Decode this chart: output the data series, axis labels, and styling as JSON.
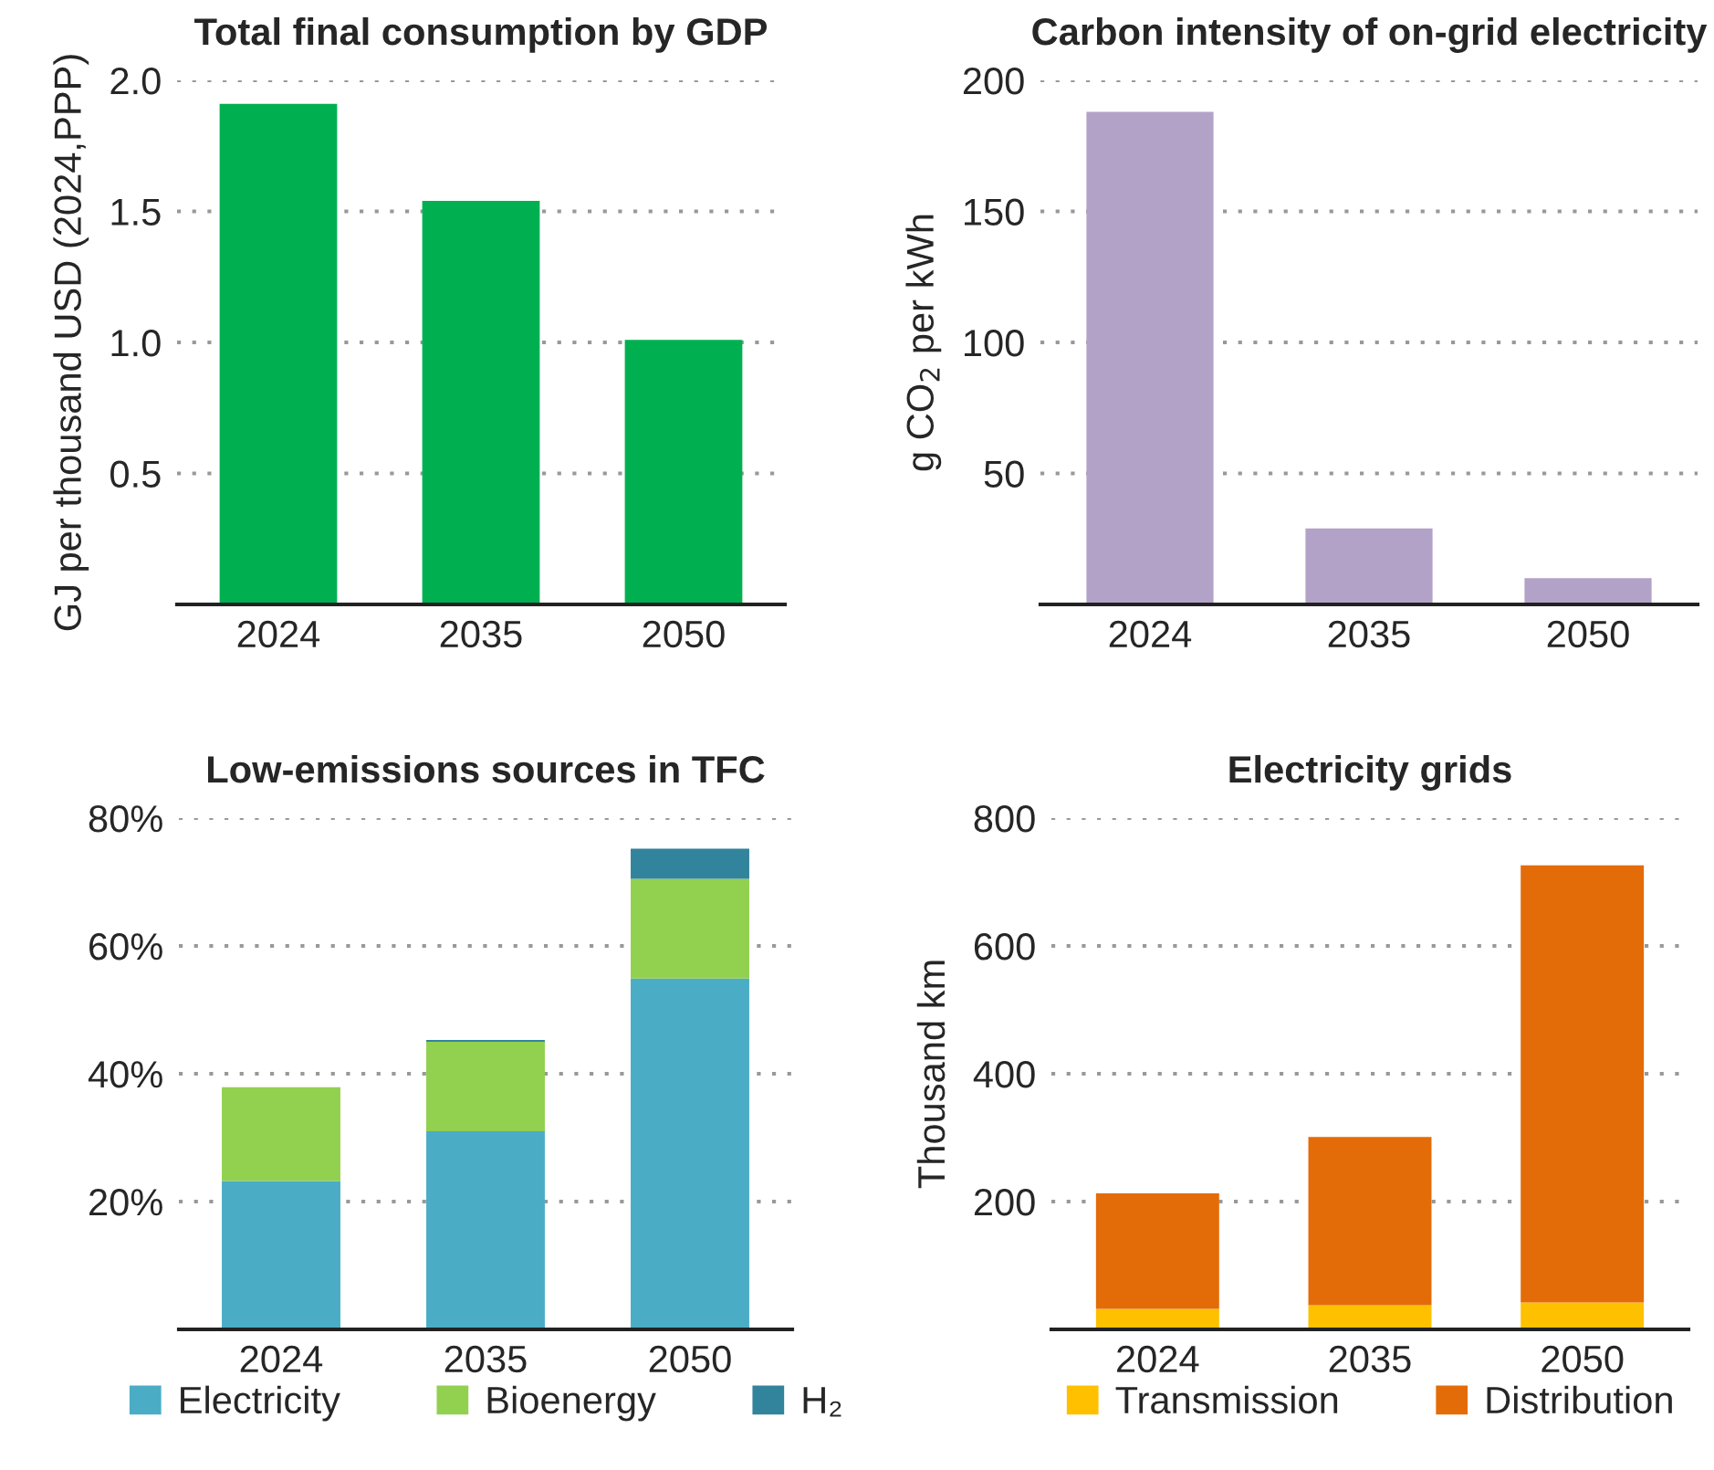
{
  "chart_data": [
    {
      "type": "bar",
      "title": "Total final consumption by GDP",
      "ylabel": "GJ per thousand USD (2024,PPP)",
      "categories": [
        "2024",
        "2035",
        "2050"
      ],
      "series": [
        {
          "color": "#00b050",
          "values": [
            1.91,
            1.54,
            1.01
          ]
        }
      ],
      "ylim": [
        0,
        2.0
      ],
      "yticks": [
        {
          "value": 0.5,
          "label": "0.5"
        },
        {
          "value": 1.0,
          "label": "1.0"
        },
        {
          "value": 1.5,
          "label": "1.5"
        },
        {
          "value": 2.0,
          "label": "2.0"
        }
      ],
      "grid": "y",
      "legend": false
    },
    {
      "type": "bar",
      "title": "Carbon intensity of on-grid electricity",
      "ylabel": "g CO$_{2}$ per kWh",
      "categories": [
        "2024",
        "2035",
        "2050"
      ],
      "series": [
        {
          "color": "#b3a2c7",
          "values": [
            188,
            29,
            10
          ]
        }
      ],
      "ylim": [
        0,
        200
      ],
      "yticks": [
        50,
        100,
        150,
        200
      ],
      "grid": "y",
      "legend": false
    },
    {
      "type": "bar",
      "title": "Low-emissions sources in TFC",
      "categories": [
        "2024",
        "2035",
        "2050"
      ],
      "stacked": true,
      "series": [
        {
          "name": "Electricity",
          "color": "#4bacc6",
          "values": [
            23.2,
            31.0,
            54.9
          ]
        },
        {
          "name": "Bioenergy",
          "color": "#92d050",
          "values": [
            14.7,
            14.0,
            15.6
          ]
        },
        {
          "name": "H₂",
          "color": "#31849b",
          "values": [
            null,
            0.3,
            4.7
          ]
        }
      ],
      "ylim": [
        0,
        80
      ],
      "yticks": [
        {
          "value": 20,
          "label": "20%"
        },
        {
          "value": 40,
          "label": "40%"
        },
        {
          "value": 60,
          "label": "60%"
        },
        {
          "value": 80,
          "label": "80%"
        }
      ],
      "grid": "y",
      "legend": "bottom"
    },
    {
      "type": "bar",
      "title": "Electricity grids",
      "ylabel": "Thousand km",
      "categories": [
        "2024",
        "2035",
        "2050"
      ],
      "stacked": true,
      "series": [
        {
          "name": "Transmission",
          "color": "#ffc000",
          "values": [
            32,
            38,
            42
          ]
        },
        {
          "name": "Distribution",
          "color": "#e36c09",
          "values": [
            181,
            263,
            684
          ]
        }
      ],
      "ylim": [
        0,
        800
      ],
      "yticks": [
        200,
        400,
        600,
        800
      ],
      "grid": "y",
      "legend": "bottom"
    }
  ]
}
